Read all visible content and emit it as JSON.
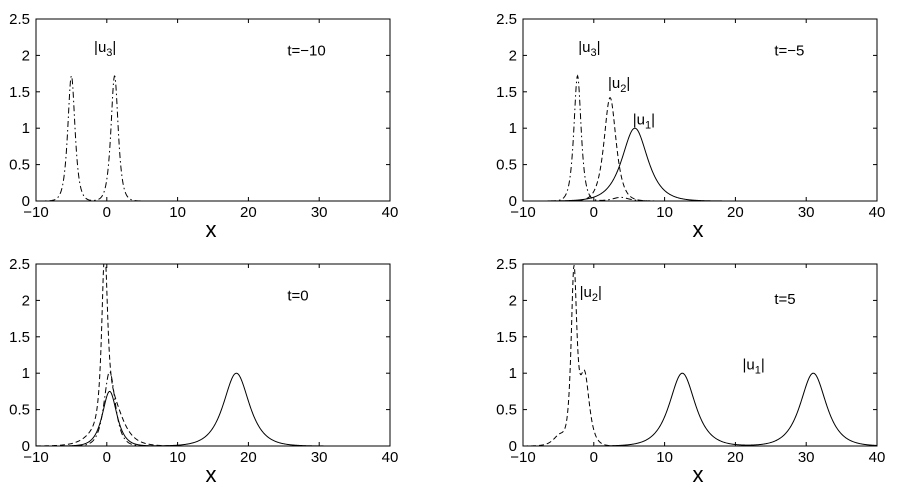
{
  "figure": {
    "background": "#ffffff",
    "line_color": "#000000"
  },
  "chart_data": [
    {
      "type": "line",
      "panel": "top-left",
      "xlabel": "x",
      "xlim": [
        -10,
        40
      ],
      "ylim": [
        0,
        2.5
      ],
      "xticks": [
        -10,
        0,
        10,
        20,
        30,
        40
      ],
      "yticks": [
        0,
        0.5,
        1,
        1.5,
        2,
        2.5
      ],
      "xtick_labels": [
        "−10",
        "0",
        "10",
        "20",
        "30",
        "40"
      ],
      "ytick_labels": [
        "0",
        "0.5",
        "1",
        "1.5",
        "2",
        "2.5"
      ],
      "series": [
        {
          "style": "dashdot",
          "peaks": [
            {
              "x": -5,
              "amp": 1.72,
              "width": 0.45
            },
            {
              "x": 1.1,
              "amp": 1.72,
              "width": 0.45
            }
          ]
        }
      ],
      "annotations": [
        {
          "text": "|u",
          "sub": "3",
          "tail": "|",
          "x": -1.8,
          "y": 2.05
        },
        {
          "text": "t=−10",
          "x": 25.5,
          "y": 2.0
        }
      ]
    },
    {
      "type": "line",
      "panel": "top-right",
      "xlabel": "x",
      "xlim": [
        -10,
        40
      ],
      "ylim": [
        0,
        2.5
      ],
      "xticks": [
        -10,
        0,
        10,
        20,
        30,
        40
      ],
      "yticks": [
        0,
        0.5,
        1,
        1.5,
        2,
        2.5
      ],
      "xtick_labels": [
        "−10",
        "0",
        "10",
        "20",
        "30",
        "40"
      ],
      "ytick_labels": [
        "0",
        "0.5",
        "1",
        "1.5",
        "2",
        "2.5"
      ],
      "series": [
        {
          "style": "dashdot",
          "peaks": [
            {
              "x": -2.3,
              "amp": 1.72,
              "width": 0.45
            },
            {
              "x": 3.8,
              "amp": 0.05,
              "width": 1.0
            }
          ]
        },
        {
          "style": "dashed",
          "peaks": [
            {
              "x": 2.3,
              "amp": 1.42,
              "width": 0.75
            }
          ]
        },
        {
          "style": "solid",
          "peaks": [
            {
              "x": 5.8,
              "amp": 1.0,
              "width": 1.6
            }
          ]
        }
      ],
      "annotations": [
        {
          "text": "|u",
          "sub": "3",
          "tail": "|",
          "x": -2.2,
          "y": 2.05
        },
        {
          "text": "|u",
          "sub": "2",
          "tail": "|",
          "x": 2.0,
          "y": 1.55
        },
        {
          "text": "|u",
          "sub": "1",
          "tail": "|",
          "x": 5.5,
          "y": 1.05
        },
        {
          "text": "t=−5",
          "x": 25.5,
          "y": 2.0
        }
      ]
    },
    {
      "type": "line",
      "panel": "bottom-left",
      "xlabel": "x",
      "xlim": [
        -10,
        40
      ],
      "ylim": [
        0,
        2.5
      ],
      "xticks": [
        -10,
        0,
        10,
        20,
        30,
        40
      ],
      "yticks": [
        0,
        0.5,
        1,
        1.5,
        2,
        2.5
      ],
      "xtick_labels": [
        "−10",
        "0",
        "10",
        "20",
        "30",
        "40"
      ],
      "ytick_labels": [
        "0",
        "0.5",
        "1",
        "1.5",
        "2",
        "2.5"
      ],
      "series": [
        {
          "style": "dashed",
          "peaks": [
            {
              "x": -0.3,
              "amp": 2.2,
              "width": 0.35
            },
            {
              "x": 0.8,
              "amp": 0.6,
              "width": 1.3
            },
            {
              "x": -1.5,
              "amp": 0.1,
              "width": 1.5
            }
          ]
        },
        {
          "style": "dashdot",
          "peaks": [
            {
              "x": 0.4,
              "amp": 1.02,
              "width": 0.7
            }
          ]
        },
        {
          "style": "solid",
          "peaks": [
            {
              "x": 0.4,
              "amp": 0.75,
              "width": 0.9
            },
            {
              "x": 18.3,
              "amp": 1.0,
              "width": 1.6
            }
          ]
        }
      ],
      "annotations": [
        {
          "text": "t=0",
          "x": 25.5,
          "y": 2.0
        }
      ]
    },
    {
      "type": "line",
      "panel": "bottom-right",
      "xlabel": "x",
      "xlim": [
        -10,
        40
      ],
      "ylim": [
        0,
        2.5
      ],
      "xticks": [
        -10,
        0,
        10,
        20,
        30,
        40
      ],
      "yticks": [
        0,
        0.5,
        1,
        1.5,
        2,
        2.5
      ],
      "xtick_labels": [
        "−10",
        "0",
        "10",
        "20",
        "30",
        "40"
      ],
      "ytick_labels": [
        "0",
        "0.5",
        "1",
        "1.5",
        "2",
        "2.5"
      ],
      "series": [
        {
          "style": "dashed",
          "peaks": [
            {
              "x": -2.8,
              "amp": 2.3,
              "width": 0.35
            },
            {
              "x": -1.3,
              "amp": 0.97,
              "width": 0.6
            },
            {
              "x": -4.8,
              "amp": 0.15,
              "width": 0.8
            }
          ]
        },
        {
          "style": "solid",
          "peaks": [
            {
              "x": 12.5,
              "amp": 1.0,
              "width": 1.6
            },
            {
              "x": 31.0,
              "amp": 1.0,
              "width": 1.6
            }
          ]
        }
      ],
      "annotations": [
        {
          "text": "|u",
          "sub": "2",
          "tail": "|",
          "x": -2.0,
          "y": 2.05
        },
        {
          "text": "|u",
          "sub": "1",
          "tail": "|",
          "x": 21.0,
          "y": 1.05
        },
        {
          "text": "t=5",
          "x": 25.5,
          "y": 1.95
        }
      ]
    }
  ]
}
